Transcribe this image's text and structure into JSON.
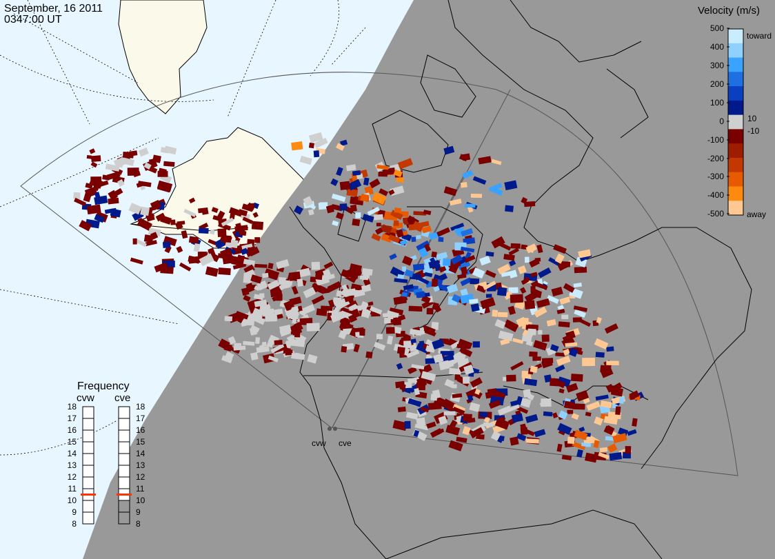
{
  "header": {
    "date": "September, 16 2011",
    "time": "0347:00 UT"
  },
  "velocity_scale": {
    "title": "Velocity (m/s)",
    "ticks": [
      "500",
      "400",
      "300",
      "200",
      "100",
      "10",
      "0",
      "-10",
      "-100",
      "-200",
      "-300",
      "-400",
      "-500"
    ],
    "toward_label": "toward",
    "away_label": "away",
    "colors": [
      "#c9ecff",
      "#8fd0ff",
      "#3aa2ff",
      "#1e6fe0",
      "#0a3fc0",
      "#001a8c",
      "#cfcfcf",
      "#7a0000",
      "#9e1c00",
      "#c23800",
      "#e85a00",
      "#ff8a10",
      "#ffc892"
    ]
  },
  "frequency": {
    "title": "Frequency",
    "radar_names": [
      "cvw",
      "cve"
    ],
    "ticks": [
      "18",
      "17",
      "16",
      "15",
      "14",
      "13",
      "12",
      "11",
      "10",
      "9",
      "8"
    ],
    "selected_mhz": [
      10.5,
      10.5
    ]
  },
  "radar_sites": [
    "cvw",
    "cve"
  ],
  "colors": {
    "ocean_day": "#e8f6ff",
    "land_day": "#fbf9e9",
    "night_shade": "#999999",
    "marker": "#ff3300"
  }
}
